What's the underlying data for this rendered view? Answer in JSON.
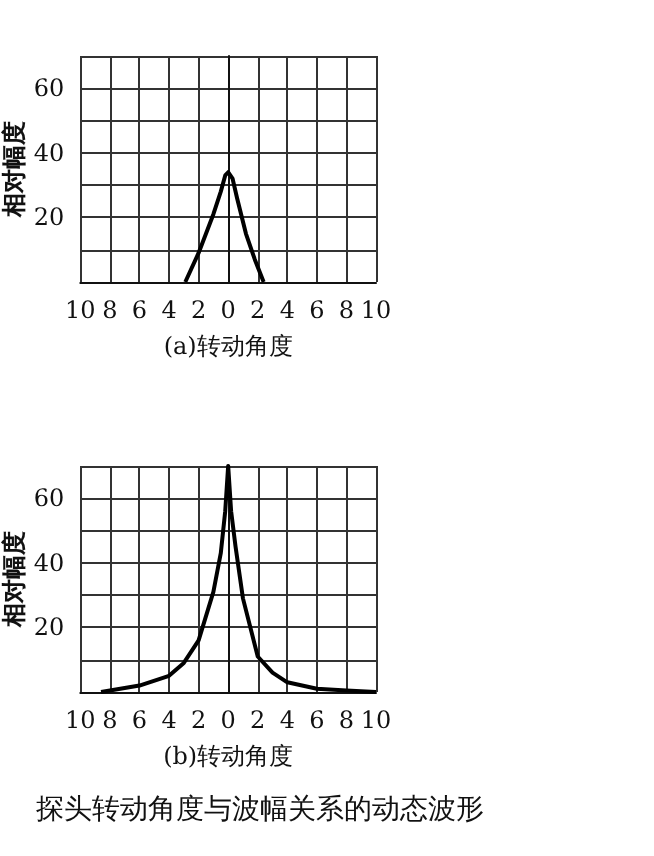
{
  "chart_data": [
    {
      "type": "line",
      "xlabel": "(a)转动角度",
      "ylabel": "相对幅度",
      "grid": true,
      "marker": "none",
      "xlim": [
        -10,
        10
      ],
      "xticks": [
        {
          "value": -10,
          "label": "10"
        },
        {
          "value": -8,
          "label": "8"
        },
        {
          "value": -6,
          "label": "6"
        },
        {
          "value": -4,
          "label": "4"
        },
        {
          "value": -2,
          "label": "2"
        },
        0,
        2,
        4,
        6,
        8,
        10
      ],
      "ylim": [
        0,
        70
      ],
      "yticks": [
        {
          "value": 10,
          "label": null
        },
        20,
        {
          "value": 30,
          "label": null
        },
        40,
        {
          "value": 50,
          "label": null
        },
        60,
        {
          "value": 70,
          "label": null
        }
      ],
      "series": [
        {
          "color": "#000000",
          "x": [
            -2.9,
            -2,
            -1,
            -0.5,
            -0.2,
            0,
            0.3,
            0.6,
            1.2,
            1.8,
            2.4
          ],
          "values": [
            0,
            9,
            21,
            28,
            33,
            34,
            32,
            26,
            15,
            7,
            0
          ]
        }
      ]
    },
    {
      "type": "line",
      "xlabel": "(b)转动角度",
      "ylabel": "相对幅度",
      "grid": true,
      "marker": "none",
      "xlim": [
        -10,
        10
      ],
      "xticks": [
        {
          "value": -10,
          "label": "10"
        },
        {
          "value": -8,
          "label": "8"
        },
        {
          "value": -6,
          "label": "6"
        },
        {
          "value": -4,
          "label": "4"
        },
        {
          "value": -2,
          "label": "2"
        },
        0,
        2,
        4,
        6,
        8,
        10
      ],
      "ylim": [
        0,
        70
      ],
      "yticks": [
        {
          "value": 10,
          "label": null
        },
        20,
        {
          "value": 30,
          "label": null
        },
        40,
        {
          "value": 50,
          "label": null
        },
        60,
        {
          "value": 70,
          "label": null
        }
      ],
      "annotations": [
        "探头转动角度与波幅关系的动态波形"
      ],
      "series": [
        {
          "color": "#000000",
          "x": [
            -8.6,
            -6,
            -4,
            -3,
            -2,
            -1,
            -0.5,
            -0.2,
            0,
            0.2,
            0.5,
            1,
            2,
            3,
            4,
            6,
            8,
            10
          ],
          "values": [
            0,
            2,
            5,
            9,
            16,
            31,
            43,
            56,
            70,
            56,
            45,
            29,
            11,
            6,
            3,
            1,
            0.5,
            0
          ]
        }
      ]
    }
  ]
}
